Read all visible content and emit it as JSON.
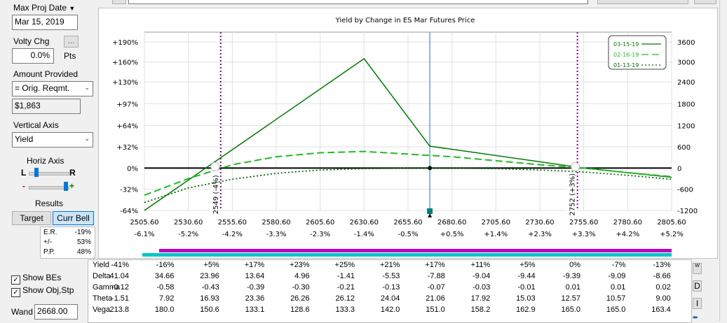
{
  "sidebar": {
    "max_proj_date_label": "Max Proj Date",
    "max_proj_date_value": "Mar 15, 2019",
    "volty_chg_label": "Volty Chg",
    "volty_chg_button": "...",
    "volty_chg_value": "0.0%",
    "volty_chg_unit": "Pts",
    "amount_provided_label": "Amount Provided",
    "amount_provided_select": "= Orig. Reqmt.",
    "amount_value": "$1,863",
    "vertical_axis_label": "Vertical Axis",
    "vertical_axis_select": "Yield",
    "horiz_axis_label": "Horiz Axis",
    "slider_left_label": "L",
    "slider_right_label": "R",
    "minus_label": "-",
    "plus_label": "+",
    "results_label": "Results",
    "target_button": "Target",
    "curr_bell_button": "Curr Bell",
    "stats": [
      {
        "label": "E.R.",
        "value": "-19%"
      },
      {
        "label": "+/-",
        "value": "53%"
      },
      {
        "label": "P.P.",
        "value": "48%"
      }
    ],
    "show_bes": "Show BEs",
    "show_obj_stp": "Show Obj,Stp",
    "wand_label": "Wand",
    "wand_value": "2668.00"
  },
  "chart_data": {
    "type": "line",
    "title": "Yield by Change in ES Mar Futures Price",
    "x_ticks": [
      "2505.60",
      "2530.60",
      "2555.60",
      "2580.60",
      "2605.60",
      "2630.60",
      "2655.60",
      "2680.60",
      "2705.60",
      "2730.60",
      "2755.60",
      "2780.60",
      "2805.60"
    ],
    "x_pct_ticks": [
      "-6.1%",
      "-5.2%",
      "-4.2%",
      "-3.3%",
      "-2.3%",
      "-1.4%",
      "-0.5%",
      "+0.5%",
      "+1.4%",
      "+2.3%",
      "+3.3%",
      "+4.2%",
      "+5.2%"
    ],
    "y_left_ticks": [
      "+190%",
      "+160%",
      "+130%",
      "+97%",
      "+64%",
      "+32%",
      "0%",
      "-32%",
      "-64%"
    ],
    "y_right_ticks": [
      "3600",
      "3000",
      "2400",
      "1800",
      "1200",
      "600",
      "0",
      "-600",
      "-1200"
    ],
    "xlim": [
      2505.6,
      2805.6
    ],
    "ylim": [
      -64,
      205
    ],
    "legend_position": "top-right",
    "vertical_markers": [
      {
        "x": 2549,
        "label": "2549 (-4%)"
      },
      {
        "x": 2752,
        "label": "2752 (+3%)"
      }
    ],
    "current_price_x": 2668,
    "series": [
      {
        "name": "03-15-19",
        "style": "solid",
        "x": [
          2505.6,
          2630.6,
          2668,
          2755.6,
          2805.6
        ],
        "y": [
          -64,
          165,
          33,
          0,
          -14
        ]
      },
      {
        "name": "02-16-19",
        "style": "dashed",
        "x": [
          2505.6,
          2530.6,
          2555.6,
          2580.6,
          2605.6,
          2630.6,
          2655.6,
          2680.6,
          2705.6,
          2730.6,
          2755.6,
          2780.6,
          2805.6
        ],
        "y": [
          -41,
          -16,
          5,
          17,
          23,
          25,
          21,
          17,
          11,
          5,
          0,
          -7,
          -13
        ]
      },
      {
        "name": "01-13-19",
        "style": "dotted",
        "x": [
          2505.6,
          2530.6,
          2555.6,
          2580.6,
          2605.6,
          2630.6,
          2655.6,
          2680.6,
          2705.6,
          2730.6,
          2755.6,
          2780.6,
          2805.6
        ],
        "y": [
          -52,
          -30,
          -17,
          -8,
          -3,
          -1,
          0,
          0,
          -1,
          -3,
          -6,
          -11,
          -17
        ]
      }
    ],
    "colors": {
      "solid": "#007a00",
      "dashed": "#22bb22",
      "dotted": "#006a00",
      "marker": "#800080",
      "price_line": "#1f78b4"
    }
  },
  "table": {
    "rows": [
      {
        "label": "Yield",
        "values": [
          "-41%",
          "-16%",
          "+5%",
          "+17%",
          "+23%",
          "+25%",
          "+21%",
          "+17%",
          "+11%",
          "+5%",
          "0%",
          "-7%",
          "-13%"
        ]
      },
      {
        "label": "Delta",
        "values": [
          "41.04",
          "34.66",
          "23.96",
          "13.64",
          "4.96",
          "-1.41",
          "-5.53",
          "-7.88",
          "-9.04",
          "-9.44",
          "-9.39",
          "-9.09",
          "-8.66"
        ]
      },
      {
        "label": "Gamma",
        "values": [
          "-0.12",
          "-0.58",
          "-0.43",
          "-0.39",
          "-0.30",
          "-0.21",
          "-0.13",
          "-0.07",
          "-0.03",
          "-0.01",
          "0.01",
          "0.01",
          "0.02"
        ]
      },
      {
        "label": "Theta",
        "values": [
          "-1.51",
          "7.92",
          "16.93",
          "23.36",
          "26.26",
          "26.12",
          "24.04",
          "21.06",
          "17.92",
          "15.03",
          "12.57",
          "10.57",
          "9.00"
        ]
      },
      {
        "label": "Vega",
        "values": [
          "213.8",
          "180.0",
          "150.6",
          "133.1",
          "128.6",
          "133.3",
          "142.0",
          "151.0",
          "158.2",
          "162.9",
          "165.0",
          "165.0",
          "163.4"
        ]
      }
    ],
    "side_buttons": [
      "W",
      "D",
      "I"
    ]
  }
}
